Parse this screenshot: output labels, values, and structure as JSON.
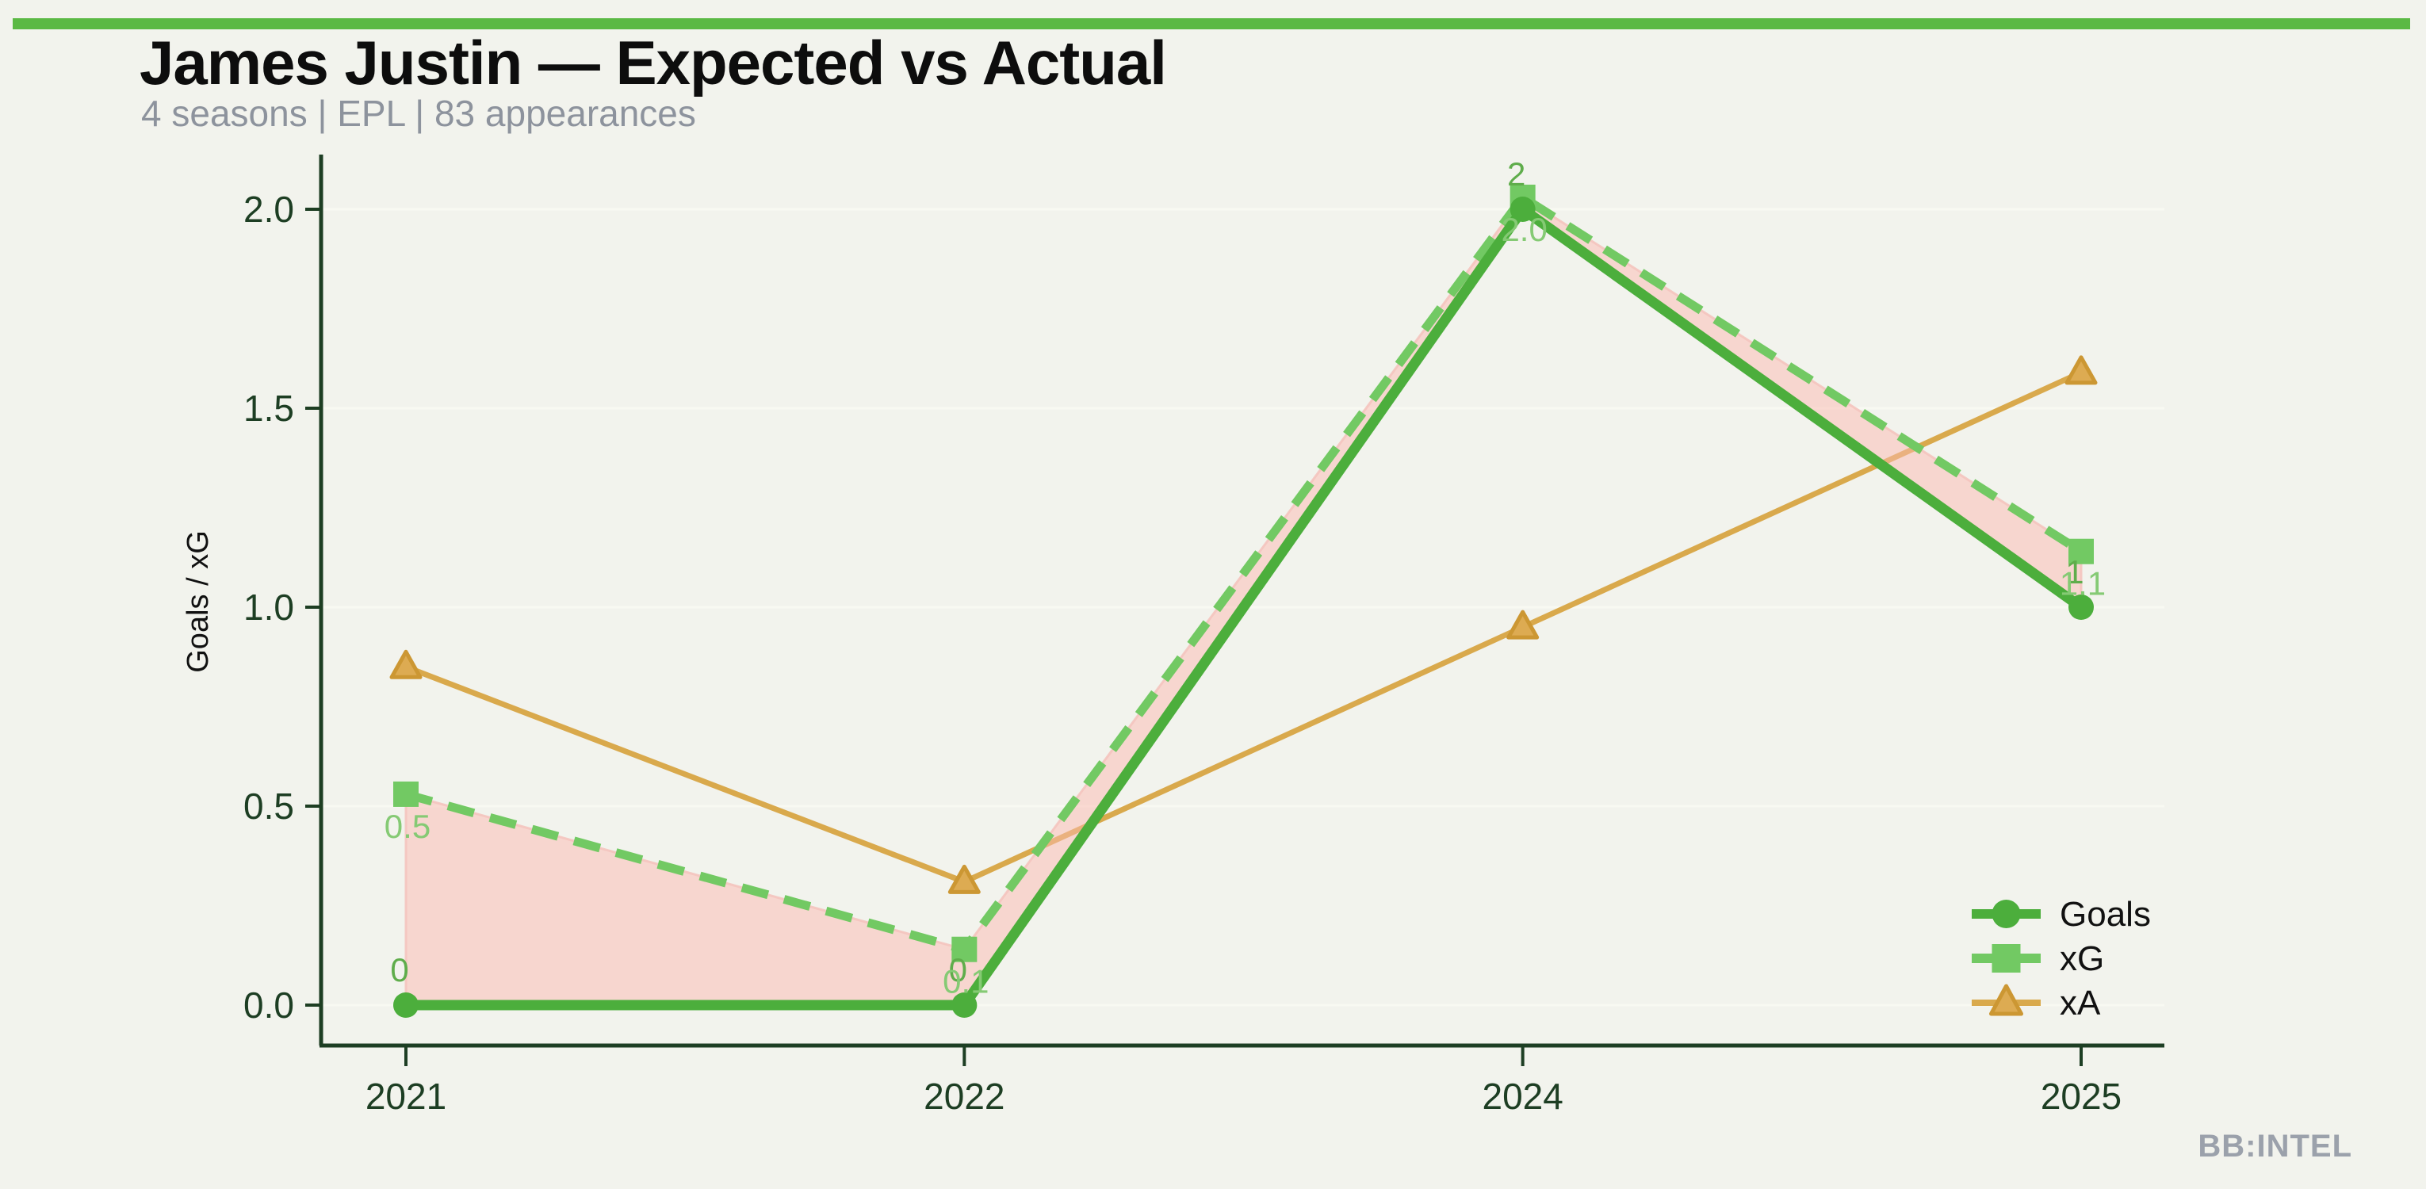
{
  "header": {
    "title": "James Justin — Expected vs Actual",
    "subtitle": "4 seasons | EPL | 83 appearances"
  },
  "branding": {
    "watermark": "BB:INTEL"
  },
  "colors": {
    "background": "#f2f3ed",
    "top_bar": "#5bb944",
    "axis": "#1d3e23",
    "title": "#0d0d0d",
    "subtitle": "#8d939d",
    "watermark": "#9ba1ab",
    "goals": "#4cae3c",
    "xg": "#72c963",
    "xa": "#d9a94c",
    "xa_marker_fill": "#ddab52",
    "xa_marker_stroke": "#cc9733",
    "band_fill": "rgba(252,185,178,0.5)",
    "band_stroke": "rgba(244,196,190,0.9)",
    "goals_label": "#5fad4b",
    "xg_label": "#85ca74",
    "grid": "#f8f9f2",
    "legend_text": "#111111"
  },
  "chart_data": {
    "type": "line",
    "title": "James Justin — Expected vs Actual",
    "categories": [
      "2021",
      "2022",
      "2024",
      "2025"
    ],
    "series": [
      {
        "name": "Goals",
        "marker": "circle",
        "style": "solid",
        "values": [
          0,
          0,
          2,
          1
        ],
        "point_labels": [
          "0",
          "0",
          "2",
          "1"
        ]
      },
      {
        "name": "xG",
        "marker": "square",
        "style": "dashed",
        "values": [
          0.53,
          0.14,
          2.03,
          1.14
        ],
        "point_labels": [
          "0.5",
          "0.1",
          "2.0",
          "1.1"
        ]
      },
      {
        "name": "xA",
        "marker": "triangle",
        "style": "solid",
        "values": [
          0.85,
          0.31,
          0.95,
          1.59
        ],
        "point_labels": [
          "",
          "",
          "",
          ""
        ]
      }
    ],
    "band": {
      "between": [
        "Goals",
        "xG"
      ],
      "note": "shaded gap where xG exceeds Goals"
    },
    "xlabel": "",
    "ylabel": "Goals / xG",
    "yticks": [
      0.0,
      0.5,
      1.0,
      1.5,
      2.0
    ],
    "ytick_labels": [
      "0.0",
      "0.5",
      "1.0",
      "1.5",
      "2.0"
    ],
    "ylim": [
      0,
      2.14
    ],
    "grid": "horizontal-faint",
    "legend_position": "lower right",
    "legend": [
      "Goals",
      "xG",
      "xA"
    ]
  }
}
